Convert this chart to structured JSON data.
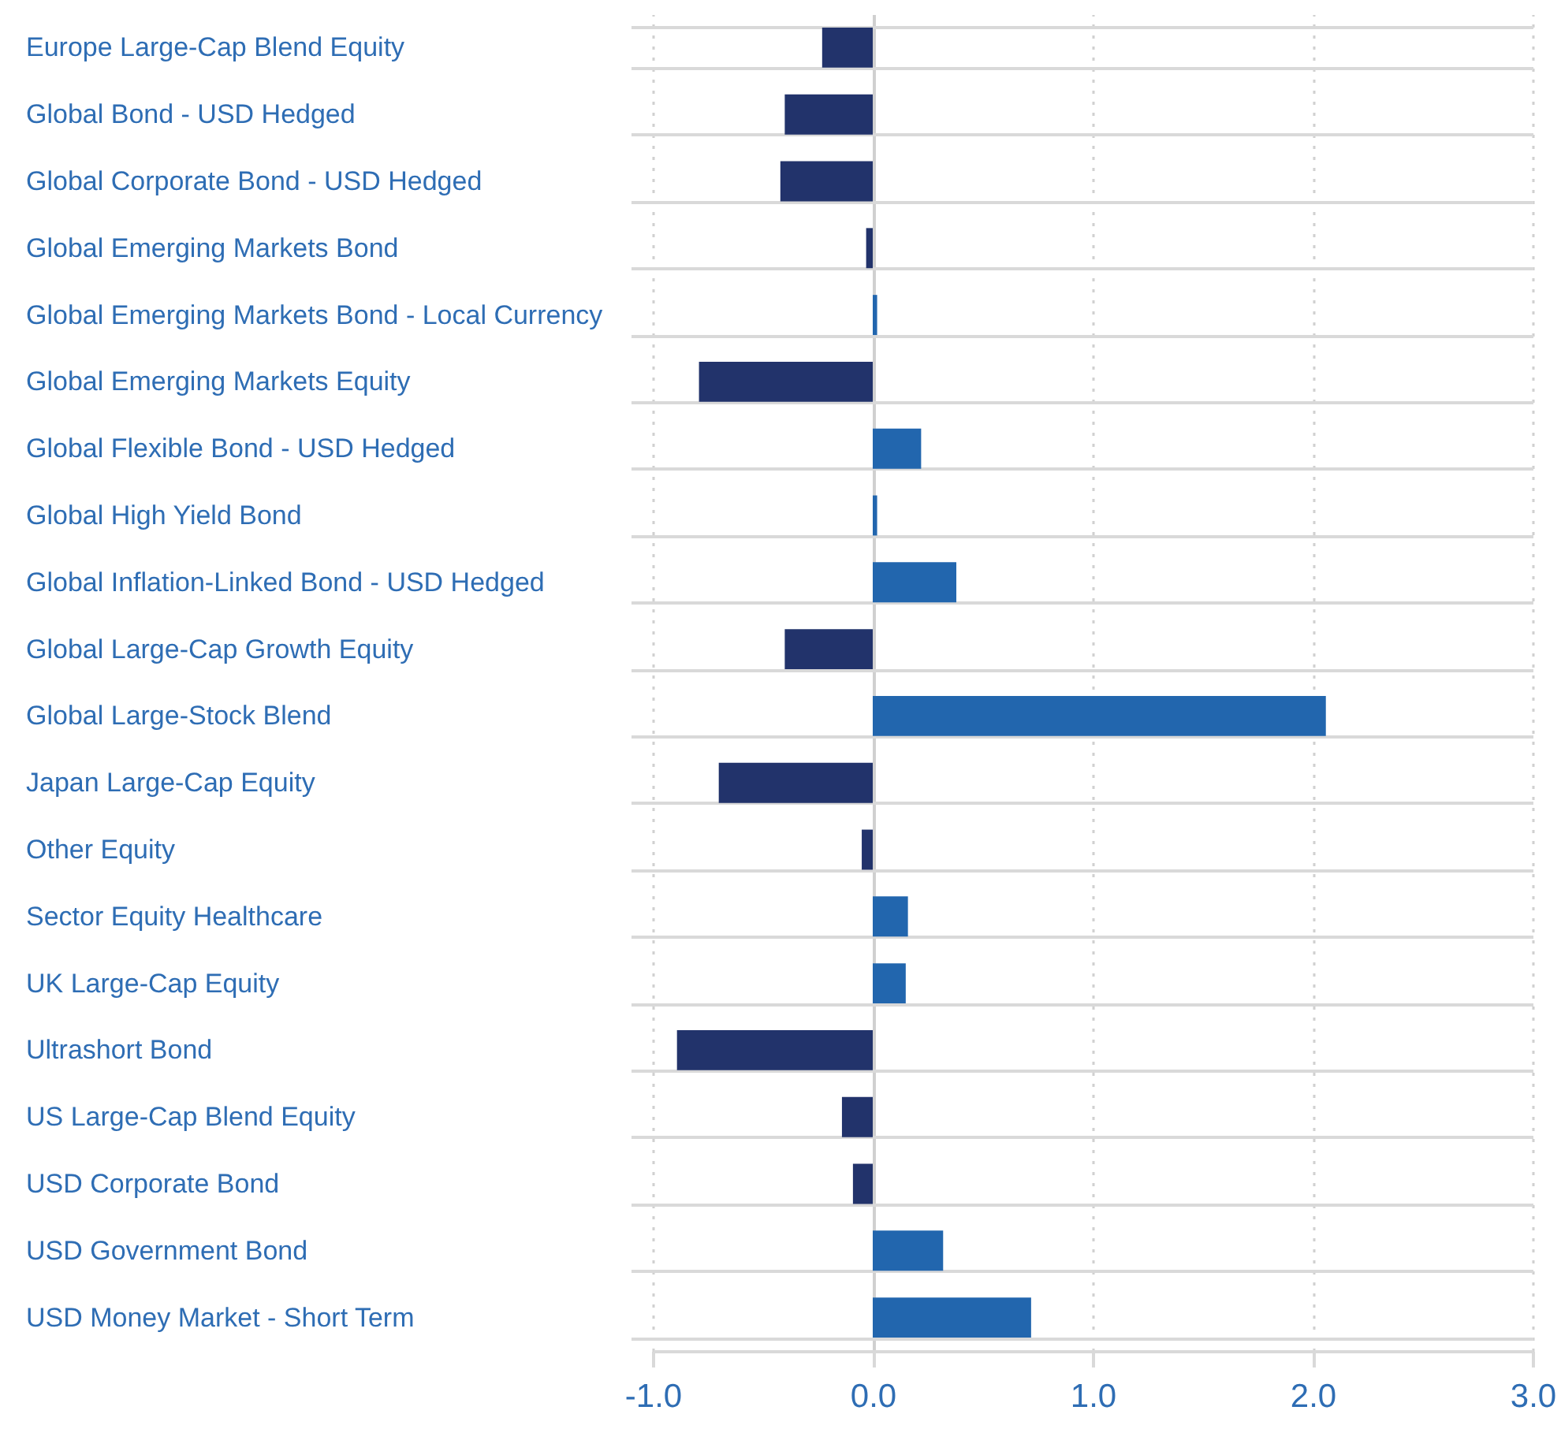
{
  "chart_data": {
    "type": "bar",
    "orientation": "horizontal",
    "categories": [
      "Europe Large-Cap Blend Equity",
      "Global Bond - USD Hedged",
      "Global Corporate Bond - USD Hedged",
      "Global Emerging Markets Bond",
      "Global Emerging Markets Bond - Local Currency",
      "Global Emerging Markets Equity",
      "Global Flexible Bond - USD Hedged",
      "Global High Yield Bond",
      "Global Inflation-Linked Bond - USD Hedged",
      "Global Large-Cap Growth Equity",
      "Global Large-Stock Blend",
      "Japan Large-Cap Equity",
      "Other Equity",
      "Sector Equity Healthcare",
      "UK Large-Cap Equity",
      "Ultrashort Bond",
      "US Large-Cap Blend Equity",
      "USD Corporate Bond",
      "USD Government Bond",
      "USD Money Market - Short Term"
    ],
    "values": [
      -0.23,
      -0.4,
      -0.42,
      -0.03,
      0.02,
      -0.79,
      0.22,
      0.02,
      0.38,
      -0.4,
      2.06,
      -0.7,
      -0.05,
      0.16,
      0.15,
      -0.89,
      -0.14,
      -0.09,
      0.32,
      0.72
    ],
    "colors": [
      "#22336b",
      "#22336b",
      "#22336b",
      "#22336b",
      "#2266ae",
      "#22336b",
      "#2266ae",
      "#2266ae",
      "#2266ae",
      "#22336b",
      "#2266ae",
      "#22336b",
      "#22336b",
      "#2266ae",
      "#2266ae",
      "#22336b",
      "#22336b",
      "#22336b",
      "#2266ae",
      "#2266ae"
    ],
    "xlim": [
      -1,
      3
    ],
    "xticks": [
      {
        "value": -1,
        "label": "-1.0"
      },
      {
        "value": 0,
        "label": "0.0"
      },
      {
        "value": 1,
        "label": "1.0"
      },
      {
        "value": 2,
        "label": "2.0"
      },
      {
        "value": 3,
        "label": "3.0"
      }
    ],
    "grid": true
  }
}
